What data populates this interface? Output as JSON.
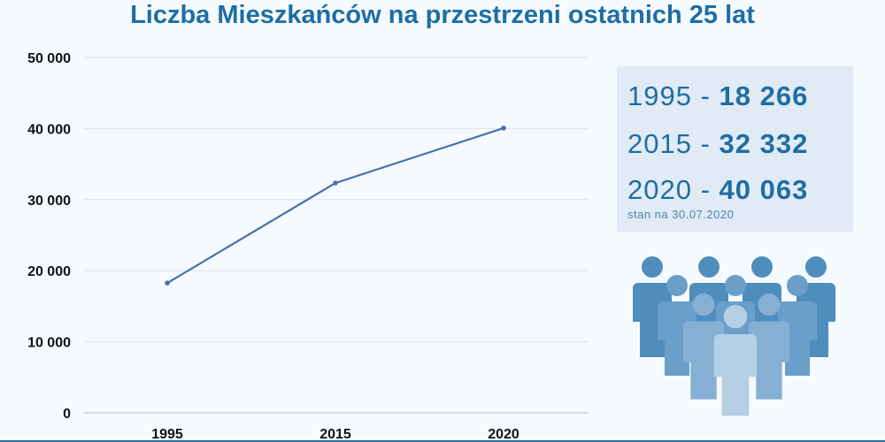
{
  "chart_data": {
    "type": "line",
    "title": "Liczba Mieszkańców na przestrzeni ostatnich 25 lat",
    "categories": [
      "1995",
      "2015",
      "2020"
    ],
    "series": [
      {
        "values": [
          18266,
          32332,
          40063
        ]
      }
    ],
    "ylim": [
      0,
      50000
    ],
    "yticks": [
      0,
      10000,
      20000,
      30000,
      40000,
      50000
    ],
    "ytick_labels": [
      "0",
      "10 000",
      "20 000",
      "30 000",
      "40 000",
      "50 000"
    ],
    "grid": true,
    "xlabel": "",
    "ylabel": "",
    "line_color": "#4a6fae"
  },
  "stats": {
    "rows": [
      {
        "year": "1995",
        "sep": " - ",
        "value": "18 266"
      },
      {
        "year": "2015",
        "sep": " - ",
        "value": "32 332"
      },
      {
        "year": "2020",
        "sep": " - ",
        "value": "40 063"
      }
    ],
    "note": "stan na 30.07.2020"
  },
  "illustration": {
    "icon": "people-group-icon"
  }
}
